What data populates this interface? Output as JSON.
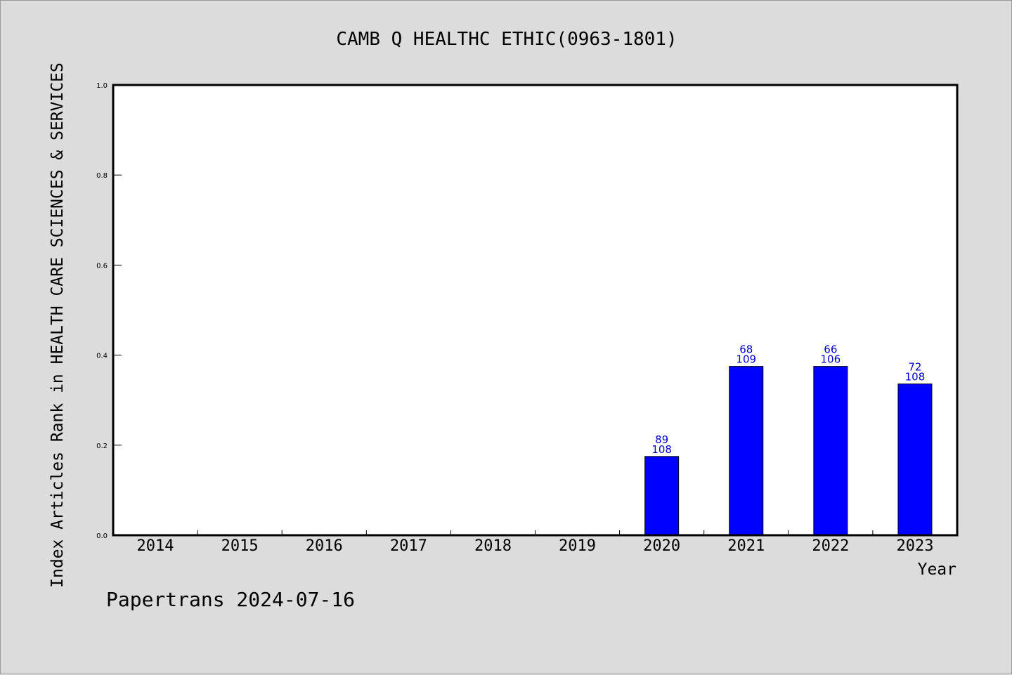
{
  "chart_data": {
    "type": "bar",
    "title": "CAMB Q HEALTHC ETHIC(0963-1801)",
    "xlabel": "Year",
    "ylabel": "Index Articles Rank in HEALTH CARE SCIENCES & SERVICES",
    "categories": [
      "2014",
      "2015",
      "2016",
      "2017",
      "2018",
      "2019",
      "2020",
      "2021",
      "2022",
      "2023"
    ],
    "values": [
      null,
      null,
      null,
      null,
      null,
      null,
      0.175,
      0.375,
      0.375,
      0.336
    ],
    "bar_labels": [
      null,
      null,
      null,
      null,
      null,
      null,
      [
        "89",
        "108"
      ],
      [
        "68",
        "109"
      ],
      [
        "66",
        "106"
      ],
      [
        "72",
        "108"
      ]
    ],
    "ylim": [
      0,
      1.0
    ],
    "yticks": [
      "0.0",
      "0.2",
      "0.4",
      "0.6",
      "0.8",
      "1.0"
    ],
    "bar_color": "#0000ff",
    "label_color": "#0000cc",
    "grid": false,
    "legend": "none"
  },
  "footer": {
    "text": "Papertrans 2024-07-16"
  }
}
